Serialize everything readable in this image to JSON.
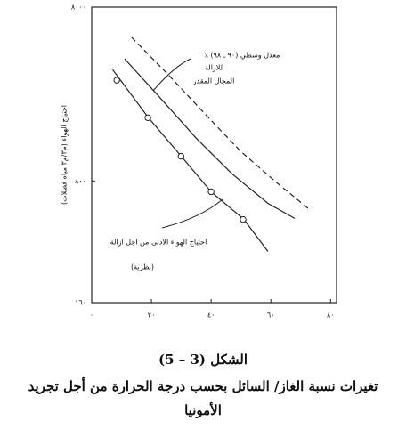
{
  "chart_data": {
    "type": "line",
    "ylabel": "احتياج الهواء (م٣/م٣ مياه فضلات)",
    "annotations": [
      "معدل وسطي (٩٠ ـ ٩٨) ٪",
      "للازالة",
      "المجال المقدر",
      "احتياج الهواء الادنى من اجل ازالة",
      "(نظرية)"
    ],
    "caption": "الشكل (3 – 5)",
    "caption_text": [
      "تغيرات نسبة الغاز/ السائل بحسب درجة الحرارة من أجل تجريد",
      "الأمونيا"
    ],
    "xlim": [
      0,
      82
    ],
    "ylim": [
      160,
      8000
    ],
    "log_y": true,
    "xticks": [
      {
        "value": 0,
        "label": "٠"
      },
      {
        "value": 20,
        "label": "٢٠"
      },
      {
        "value": 40,
        "label": "٤٠"
      },
      {
        "value": 60,
        "label": "٦٠"
      },
      {
        "value": 80,
        "label": "٨٠"
      }
    ],
    "yticks": [
      {
        "value": 160,
        "label": "١٦٠"
      },
      {
        "value": 800,
        "label": "٨٠٠"
      },
      {
        "value": 8000,
        "label": "٨٠٠٠"
      }
    ],
    "series": [
      {
        "color": "#222",
        "dash": false,
        "marker": false,
        "x": [
          7,
          19,
          30,
          40,
          51,
          59
        ],
        "values": [
          3500,
          1850,
          1110,
          694,
          481,
          315
        ]
      },
      {
        "color": "#222",
        "dash": false,
        "marker": true,
        "x": [
          8.4,
          18.8,
          29.9,
          40,
          50.7
        ],
        "values": [
          3040,
          1850,
          1110,
          694,
          481
        ]
      },
      {
        "color": "#222",
        "dash": false,
        "marker": false,
        "x": [
          11,
          23,
          35,
          47,
          59,
          68
        ],
        "values": [
          4040,
          2400,
          1410,
          880,
          595,
          488
        ]
      },
      {
        "color": "#222",
        "dash": true,
        "marker": false,
        "x": [
          13.4,
          26,
          38,
          50,
          62,
          73
        ],
        "values": [
          5360,
          3220,
          1940,
          1180,
          782,
          548
        ]
      }
    ]
  }
}
